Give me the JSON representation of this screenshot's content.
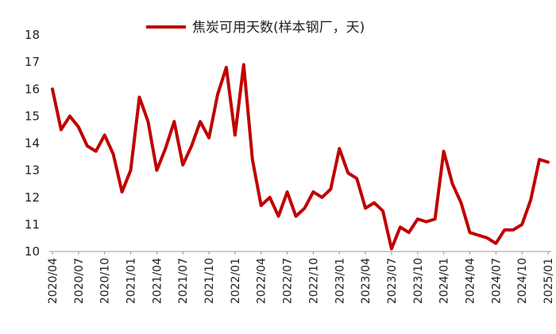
{
  "chart_data": {
    "type": "line",
    "title": "",
    "xlabel": "",
    "ylabel": "",
    "ylim": [
      10,
      18
    ],
    "yticks": [
      10,
      11,
      12,
      13,
      14,
      15,
      16,
      17,
      18
    ],
    "xticks": [
      "2020/04",
      "2020/07",
      "2020/10",
      "2021/01",
      "2021/04",
      "2021/07",
      "2021/10",
      "2022/01",
      "2022/04",
      "2022/07",
      "2022/10",
      "2023/01",
      "2023/04",
      "2023/07",
      "2023/10",
      "2024/01",
      "2024/04",
      "2024/07",
      "2024/10",
      "2025/01"
    ],
    "grid": false,
    "legend": "top-center",
    "series": [
      {
        "name": "焦炭可用天数(样本钢厂，天)",
        "color": "#c00000",
        "x": [
          "2020/04",
          "2020/05",
          "2020/06",
          "2020/07",
          "2020/08",
          "2020/09",
          "2020/10",
          "2020/11",
          "2020/12",
          "2021/01",
          "2021/02",
          "2021/03",
          "2021/04",
          "2021/05",
          "2021/06",
          "2021/07",
          "2021/08",
          "2021/09",
          "2021/10",
          "2021/11",
          "2021/12",
          "2022/01",
          "2022/02",
          "2022/03",
          "2022/04",
          "2022/05",
          "2022/06",
          "2022/07",
          "2022/08",
          "2022/09",
          "2022/10",
          "2022/11",
          "2022/12",
          "2023/01",
          "2023/02",
          "2023/03",
          "2023/04",
          "2023/05",
          "2023/06",
          "2023/07",
          "2023/08",
          "2023/09",
          "2023/10",
          "2023/11",
          "2023/12",
          "2024/01",
          "2024/02",
          "2024/03",
          "2024/04",
          "2024/05",
          "2024/06",
          "2024/07",
          "2024/08",
          "2024/09",
          "2024/10",
          "2024/11",
          "2024/12",
          "2025/01"
        ],
        "y": [
          16.0,
          14.5,
          15.0,
          14.6,
          13.9,
          13.7,
          14.3,
          13.6,
          12.2,
          13.0,
          15.7,
          14.8,
          13.0,
          13.8,
          14.8,
          13.2,
          13.9,
          14.8,
          14.2,
          15.8,
          16.8,
          14.3,
          16.9,
          13.4,
          11.7,
          12.0,
          11.3,
          12.2,
          11.3,
          11.6,
          12.2,
          12.0,
          12.3,
          13.8,
          12.9,
          12.7,
          11.6,
          11.8,
          11.5,
          10.1,
          10.9,
          10.7,
          11.2,
          11.1,
          11.2,
          13.7,
          12.5,
          11.8,
          10.7,
          10.6,
          10.5,
          10.3,
          10.8,
          10.8,
          11.0,
          11.9,
          13.4,
          13.3
        ]
      }
    ]
  }
}
